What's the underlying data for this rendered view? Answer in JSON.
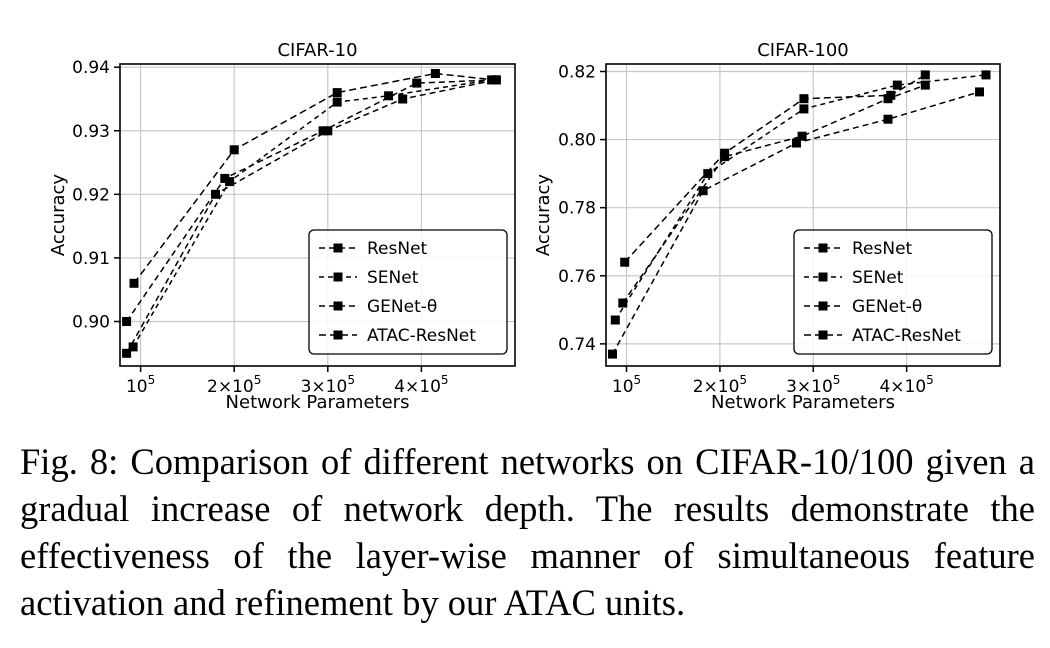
{
  "caption": "Fig. 8: Comparison of different networks on CIFAR-10/100 given a gradual increase of network depth. The results demonstrate the effectiveness of the layer-wise manner of simultaneous feature activation and refinement by our ATAC units.",
  "chart_data": [
    {
      "type": "line",
      "title": "CIFAR-10",
      "xlabel": "Network Parameters",
      "ylabel": "Accuracy",
      "xlim": [
        78000,
        500000
      ],
      "ylim": [
        0.893,
        0.9405
      ],
      "xticks": [
        {
          "value": 100000,
          "base": "10",
          "exp": "5"
        },
        {
          "value": 200000,
          "base": "2×10",
          "exp": "5"
        },
        {
          "value": 300000,
          "base": "3×10",
          "exp": "5"
        },
        {
          "value": 400000,
          "base": "4×10",
          "exp": "5"
        }
      ],
      "yticks": [
        {
          "value": 0.9,
          "label": "0.90"
        },
        {
          "value": 0.91,
          "label": "0.91"
        },
        {
          "value": 0.92,
          "label": "0.92"
        },
        {
          "value": 0.93,
          "label": "0.93"
        },
        {
          "value": 0.94,
          "label": "0.94"
        }
      ],
      "grid": true,
      "legend_position": "lower-right",
      "series": [
        {
          "name": "ResNet",
          "x": [
            85000,
            180000,
            300000,
            380000,
            480000
          ],
          "y": [
            0.895,
            0.92,
            0.93,
            0.935,
            0.938
          ]
        },
        {
          "name": "SENet",
          "x": [
            92000,
            195000,
            310000,
            365000,
            475000
          ],
          "y": [
            0.896,
            0.922,
            0.9345,
            0.9355,
            0.938
          ]
        },
        {
          "name": "GENet-θ",
          "x": [
            85000,
            190000,
            295000,
            395000,
            480000
          ],
          "y": [
            0.9,
            0.9225,
            0.93,
            0.9375,
            0.938
          ]
        },
        {
          "name": "ATAC-ResNet",
          "x": [
            93000,
            200000,
            310000,
            415000,
            478000
          ],
          "y": [
            0.906,
            0.927,
            0.936,
            0.939,
            0.938
          ]
        }
      ]
    },
    {
      "type": "line",
      "title": "CIFAR-100",
      "xlabel": "Network Parameters",
      "ylabel": "Accuracy",
      "xlim": [
        78000,
        500000
      ],
      "ylim": [
        0.7335,
        0.8222
      ],
      "xticks": [
        {
          "value": 100000,
          "base": "10",
          "exp": "5"
        },
        {
          "value": 200000,
          "base": "2×10",
          "exp": "5"
        },
        {
          "value": 300000,
          "base": "3×10",
          "exp": "5"
        },
        {
          "value": 400000,
          "base": "4×10",
          "exp": "5"
        }
      ],
      "yticks": [
        {
          "value": 0.74,
          "label": "0.74"
        },
        {
          "value": 0.76,
          "label": "0.76"
        },
        {
          "value": 0.78,
          "label": "0.78"
        },
        {
          "value": 0.8,
          "label": "0.80"
        },
        {
          "value": 0.82,
          "label": "0.82"
        }
      ],
      "grid": true,
      "legend_position": "lower-right",
      "series": [
        {
          "name": "ResNet",
          "x": [
            85000,
            182000,
            282000,
            380000,
            478000
          ],
          "y": [
            0.737,
            0.785,
            0.799,
            0.806,
            0.814
          ]
        },
        {
          "name": "SENet",
          "x": [
            88000,
            187000,
            290000,
            390000,
            485000
          ],
          "y": [
            0.747,
            0.79,
            0.809,
            0.816,
            0.819
          ]
        },
        {
          "name": "GENet-θ",
          "x": [
            96000,
            205000,
            288000,
            380000,
            420000
          ],
          "y": [
            0.752,
            0.795,
            0.801,
            0.812,
            0.816
          ]
        },
        {
          "name": "ATAC-ResNet",
          "x": [
            98000,
            205000,
            290000,
            383000,
            420000
          ],
          "y": [
            0.764,
            0.796,
            0.812,
            0.813,
            0.819
          ]
        }
      ]
    }
  ]
}
